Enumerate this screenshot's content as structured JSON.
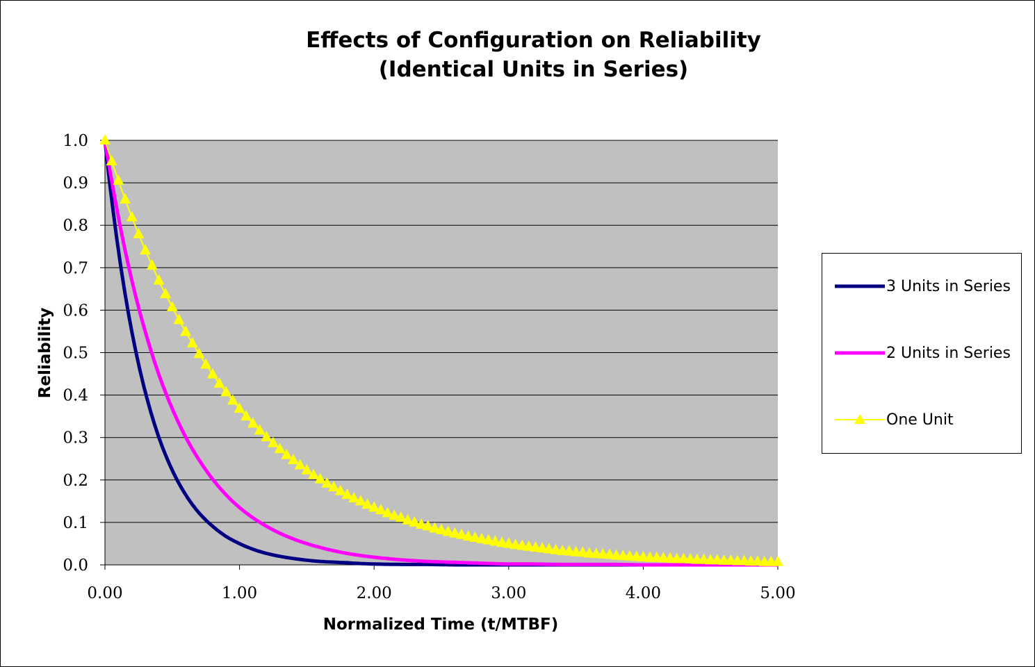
{
  "chart_data": {
    "type": "line",
    "title": "Effects of Configuration on Reliability",
    "subtitle": "(Identical Units in Series)",
    "xlabel": "Normalized Time (t/MTBF)",
    "ylabel": "Reliability",
    "xlim": [
      0,
      5
    ],
    "ylim": [
      0,
      1
    ],
    "x_ticks": [
      "0.00",
      "1.00",
      "2.00",
      "3.00",
      "4.00",
      "5.00"
    ],
    "y_ticks": [
      "0.0",
      "0.1",
      "0.2",
      "0.3",
      "0.4",
      "0.5",
      "0.6",
      "0.7",
      "0.8",
      "0.9",
      "1.0"
    ],
    "grid": "horizontal",
    "legend_position": "right",
    "plot_background": "#c0c0c0",
    "x": [
      0.0,
      0.1,
      0.2,
      0.3,
      0.4,
      0.5,
      0.6,
      0.7,
      0.8,
      0.9,
      1.0,
      1.2,
      1.4,
      1.6,
      1.8,
      2.0,
      2.2,
      2.4,
      2.6,
      2.8,
      3.0,
      3.2,
      3.4,
      3.6,
      3.8,
      4.0,
      4.2,
      4.4,
      4.6,
      4.8,
      5.0
    ],
    "series": [
      {
        "name": "3 Units in Series",
        "color": "#000080",
        "marker": "none",
        "values": [
          1.0,
          0.741,
          0.549,
          0.407,
          0.301,
          0.223,
          0.165,
          0.122,
          0.091,
          0.067,
          0.05,
          0.027,
          0.015,
          0.008,
          0.005,
          0.002,
          0.001,
          0.001,
          0.0,
          0.0,
          0.0,
          0.0,
          0.0,
          0.0,
          0.0,
          0.0,
          0.0,
          0.0,
          0.0,
          0.0,
          0.0
        ]
      },
      {
        "name": "2 Units in Series",
        "color": "#ff00ff",
        "marker": "none",
        "values": [
          1.0,
          0.819,
          0.67,
          0.549,
          0.449,
          0.368,
          0.301,
          0.247,
          0.202,
          0.165,
          0.135,
          0.091,
          0.061,
          0.041,
          0.027,
          0.018,
          0.012,
          0.008,
          0.006,
          0.004,
          0.002,
          0.002,
          0.001,
          0.001,
          0.001,
          0.0,
          0.0,
          0.0,
          0.0,
          0.0,
          0.0
        ]
      },
      {
        "name": "One Unit",
        "color": "#ffff00",
        "marker": "triangle",
        "x": [
          0.0,
          0.05,
          0.1,
          0.15,
          0.2,
          0.25,
          0.3,
          0.35,
          0.4,
          0.45,
          0.5,
          0.55,
          0.6,
          0.65,
          0.7,
          0.75,
          0.8,
          0.85,
          0.9,
          0.95,
          1.0,
          1.05,
          1.1,
          1.15,
          1.2,
          1.25,
          1.3,
          1.35,
          1.4,
          1.45,
          1.5,
          1.55,
          1.6,
          1.65,
          1.7,
          1.75,
          1.8,
          1.85,
          1.9,
          1.95,
          2.0,
          2.05,
          2.1,
          2.15,
          2.2,
          2.25,
          2.3,
          2.35,
          2.4,
          2.45,
          2.5,
          2.55,
          2.6,
          2.65,
          2.7,
          2.75,
          2.8,
          2.85,
          2.9,
          2.95,
          3.0,
          3.05,
          3.1,
          3.15,
          3.2,
          3.25,
          3.3,
          3.35,
          3.4,
          3.45,
          3.5,
          3.55,
          3.6,
          3.65,
          3.7,
          3.75,
          3.8,
          3.85,
          3.9,
          3.95,
          4.0,
          4.05,
          4.1,
          4.15,
          4.2,
          4.25,
          4.3,
          4.35,
          4.4,
          4.45,
          4.5,
          4.55,
          4.6,
          4.65,
          4.7,
          4.75,
          4.8,
          4.85,
          4.9,
          4.95,
          5.0
        ],
        "values": [
          1.0,
          0.951,
          0.905,
          0.861,
          0.819,
          0.779,
          0.741,
          0.705,
          0.67,
          0.638,
          0.607,
          0.577,
          0.549,
          0.522,
          0.497,
          0.472,
          0.449,
          0.427,
          0.407,
          0.387,
          0.368,
          0.35,
          0.333,
          0.317,
          0.301,
          0.287,
          0.273,
          0.259,
          0.247,
          0.235,
          0.223,
          0.212,
          0.202,
          0.192,
          0.183,
          0.174,
          0.165,
          0.157,
          0.15,
          0.142,
          0.135,
          0.129,
          0.122,
          0.116,
          0.111,
          0.105,
          0.1,
          0.095,
          0.091,
          0.086,
          0.082,
          0.078,
          0.074,
          0.071,
          0.067,
          0.064,
          0.061,
          0.058,
          0.055,
          0.052,
          0.05,
          0.047,
          0.045,
          0.043,
          0.041,
          0.039,
          0.037,
          0.035,
          0.033,
          0.032,
          0.03,
          0.029,
          0.027,
          0.026,
          0.025,
          0.024,
          0.022,
          0.021,
          0.02,
          0.019,
          0.018,
          0.017,
          0.017,
          0.016,
          0.015,
          0.014,
          0.014,
          0.013,
          0.012,
          0.012,
          0.011,
          0.011,
          0.01,
          0.01,
          0.009,
          0.009,
          0.008,
          0.008,
          0.007,
          0.007,
          0.007
        ]
      }
    ]
  }
}
